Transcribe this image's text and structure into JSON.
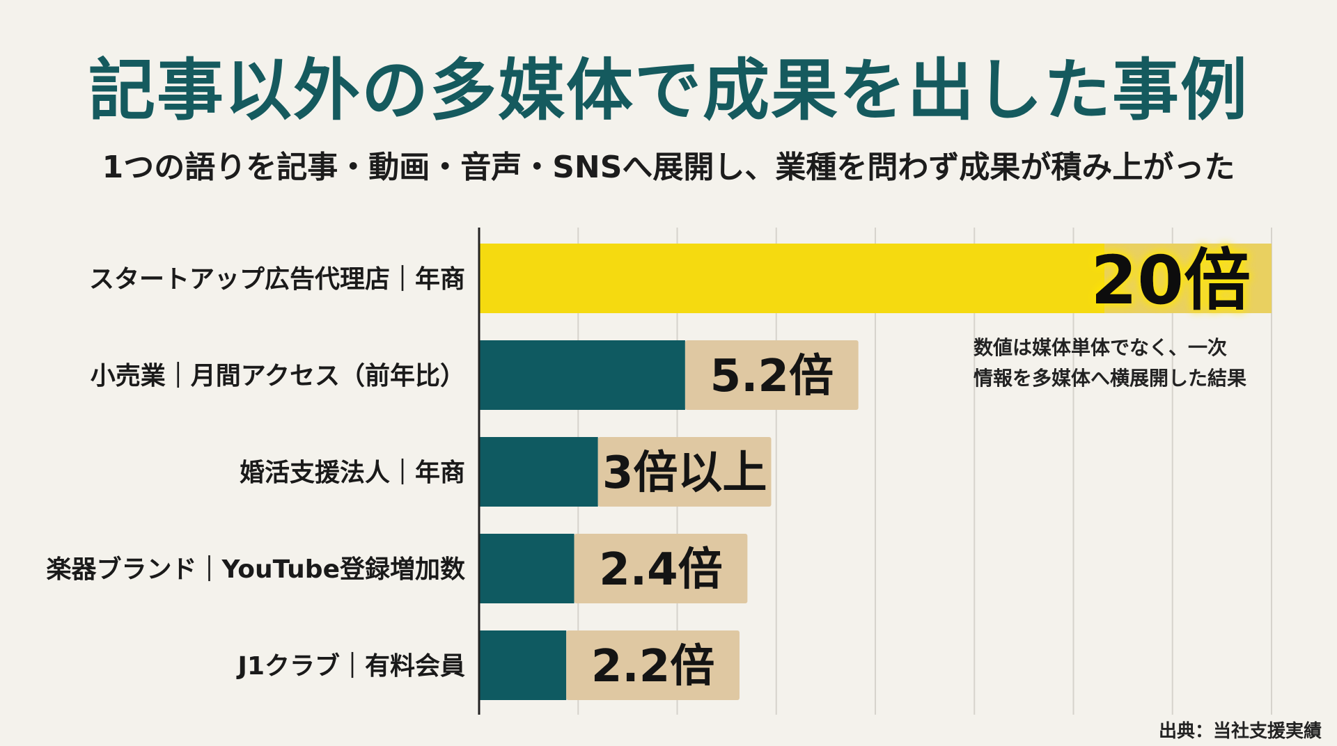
{
  "title": "記事以外の多媒体で成果を出した事例",
  "subtitle": "1つの語りを記事・動画・音声・SNSへ展開し、業種を問わず成果が積み上がった",
  "note": {
    "line1": "数値は媒体単体でなく、一次",
    "line2": "情報を多媒体へ横展開した結果"
  },
  "source": "出典：当社支援実績",
  "colors": {
    "background": "#f4f2ec",
    "title": "#155a5e",
    "bar_teal": "#0f5a61",
    "bar_highlight": "#f5da10",
    "label_box": "#dfc8a2",
    "grid": "#d6d3cc",
    "axis": "#222222"
  },
  "chart_data": {
    "type": "bar",
    "orientation": "horizontal",
    "categories": [
      "スタートアップ広告代理店｜年商",
      "小売業｜月間アクセス（前年比）",
      "婚活支援法人｜年商",
      "楽器ブランド｜YouTube登録増加数",
      "J1クラブ｜有料会員"
    ],
    "values": [
      20,
      5.2,
      3,
      2.4,
      2.2
    ],
    "value_labels": [
      "20倍",
      "5.2倍",
      "3倍以上",
      "2.4倍",
      "2.2倍"
    ],
    "highlight_index": 0,
    "xlim": [
      0,
      20
    ],
    "grid": true,
    "xlabel": "",
    "ylabel": ""
  }
}
